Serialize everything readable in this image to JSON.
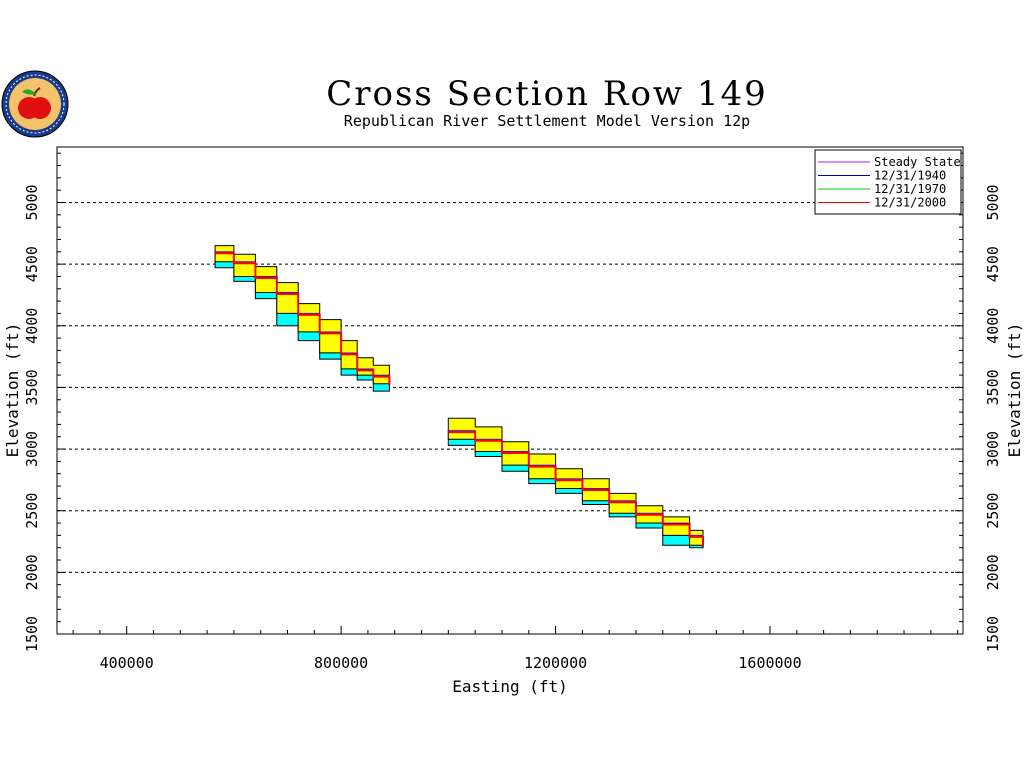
{
  "chart_data": {
    "type": "line",
    "title": "Cross Section Row 149",
    "subtitle": "Republican River Settlement Model Version 12p",
    "xlabel": "Easting (ft)",
    "ylabel": "Elevation (ft)",
    "xlim": [
      270000,
      1960000
    ],
    "ylim": [
      1500,
      5450
    ],
    "x_ticks": [
      400000,
      800000,
      1200000,
      1600000
    ],
    "x_tick_labels": [
      "400000",
      "800000",
      "1200000",
      "1600000"
    ],
    "y_ticks": [
      1500,
      2000,
      2500,
      3000,
      3500,
      4000,
      4500,
      5000
    ],
    "y_tick_labels": [
      "1500",
      "2000",
      "2500",
      "3000",
      "3500",
      "4000",
      "4500",
      "5000"
    ],
    "grid": "horizontal dashed",
    "legend_position": "top-right",
    "layer_colors": {
      "top_layer": "#ffff00",
      "bottom_layer": "#00ffff"
    },
    "series": [
      {
        "name": "Steady State",
        "color": "#a020f0",
        "x": [
          565000,
          600000,
          640000,
          680000,
          720000,
          760000,
          800000,
          830000,
          860000,
          890000
        ],
        "y": [
          4600,
          4520,
          4400,
          4270,
          4100,
          3950,
          3780,
          3650,
          3600,
          3530
        ]
      },
      {
        "name": "12/31/1940",
        "color": "#0000aa",
        "x": [
          565000,
          600000,
          640000,
          680000,
          720000,
          760000,
          800000,
          830000,
          860000,
          890000
        ],
        "y": [
          4600,
          4520,
          4400,
          4270,
          4100,
          3950,
          3780,
          3650,
          3600,
          3530
        ]
      },
      {
        "name": "12/31/1970",
        "color": "#00cc00",
        "x": [
          565000,
          600000,
          640000,
          680000,
          720000,
          760000,
          800000,
          830000,
          860000,
          890000
        ],
        "y": [
          4600,
          4520,
          4400,
          4270,
          4100,
          3950,
          3780,
          3650,
          3600,
          3530
        ]
      },
      {
        "name": "12/31/2000",
        "color": "#ff0000",
        "x": [
          565000,
          600000,
          640000,
          680000,
          720000,
          760000,
          800000,
          830000,
          860000,
          890000
        ],
        "y": [
          4600,
          4520,
          4400,
          4270,
          4100,
          3950,
          3780,
          3650,
          3600,
          3530
        ]
      }
    ],
    "water_table_segments": [
      {
        "x": [
          565000,
          600000,
          640000,
          680000,
          720000,
          760000,
          800000,
          830000,
          860000,
          890000
        ],
        "y": [
          4600,
          4520,
          4400,
          4270,
          4100,
          3950,
          3780,
          3650,
          3600,
          3530
        ]
      },
      {
        "x": [
          1000000,
          1050000,
          1100000,
          1150000,
          1200000,
          1250000,
          1300000,
          1350000,
          1400000,
          1450000,
          1475000
        ],
        "y": [
          3150,
          3080,
          2980,
          2870,
          2760,
          2680,
          2580,
          2480,
          2400,
          2300,
          2220
        ]
      }
    ],
    "top_layer": [
      {
        "x": [
          565000,
          600000,
          640000,
          680000,
          720000,
          760000,
          800000,
          830000,
          860000,
          890000
        ],
        "top": [
          4650,
          4580,
          4480,
          4350,
          4180,
          4050,
          3880,
          3740,
          3680,
          3560
        ],
        "bottom": [
          4600,
          4520,
          4400,
          4270,
          4100,
          3950,
          3780,
          3650,
          3600,
          3530
        ]
      },
      {
        "x": [
          1000000,
          1050000,
          1100000,
          1150000,
          1200000,
          1250000,
          1300000,
          1350000,
          1400000,
          1450000,
          1475000
        ],
        "top": [
          3250,
          3180,
          3060,
          2960,
          2840,
          2760,
          2640,
          2540,
          2450,
          2340,
          2260
        ],
        "bottom": [
          3150,
          3080,
          2980,
          2870,
          2760,
          2680,
          2580,
          2480,
          2400,
          2300,
          2220
        ]
      }
    ],
    "bottom_layer": [
      {
        "x": [
          565000,
          600000,
          640000,
          680000,
          720000,
          760000,
          800000,
          830000,
          860000,
          890000
        ],
        "top": [
          4600,
          4520,
          4400,
          4270,
          4100,
          3950,
          3780,
          3650,
          3600,
          3530
        ],
        "bottom": [
          4560,
          4470,
          4360,
          4220,
          4000,
          3880,
          3730,
          3600,
          3560,
          3470
        ]
      },
      {
        "x": [
          1000000,
          1050000,
          1100000,
          1150000,
          1200000,
          1250000,
          1300000,
          1350000,
          1400000,
          1450000,
          1475000
        ],
        "top": [
          3150,
          3080,
          2980,
          2870,
          2760,
          2680,
          2580,
          2480,
          2400,
          2300,
          2220
        ],
        "bottom": [
          3100,
          3030,
          2940,
          2820,
          2720,
          2640,
          2550,
          2450,
          2360,
          2220,
          2200
        ]
      }
    ]
  },
  "logo": {
    "name": "apple-seal-logo"
  }
}
